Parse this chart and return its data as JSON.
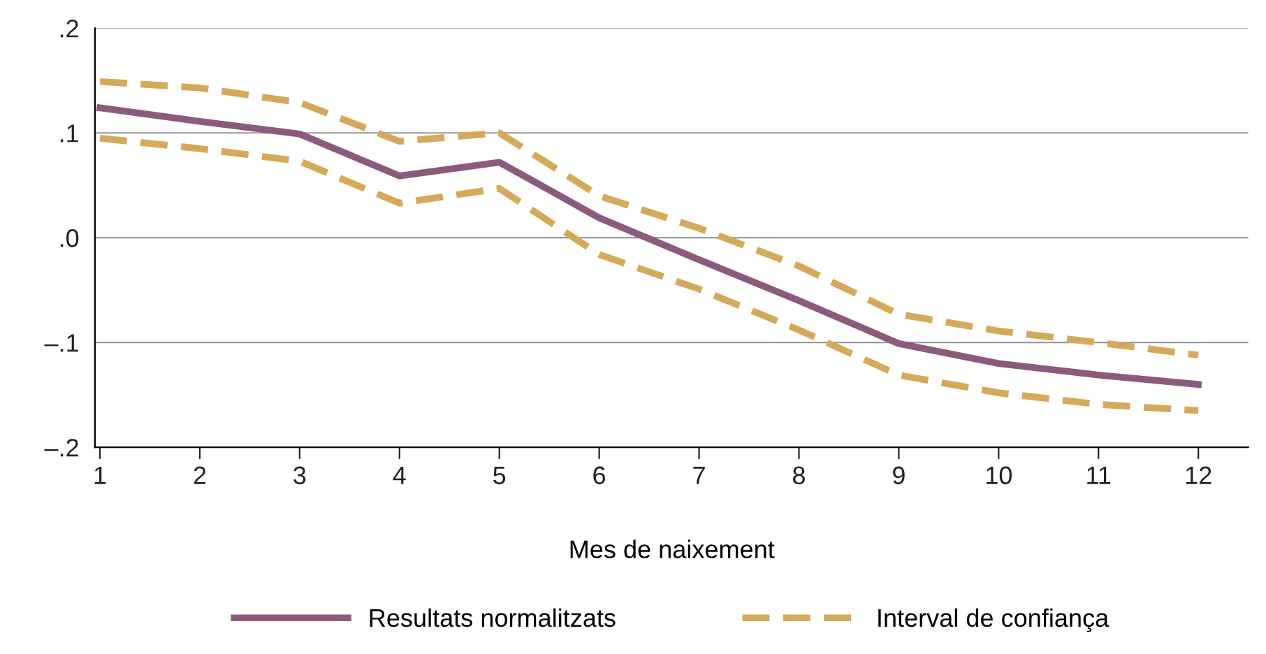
{
  "chart_data": {
    "type": "line",
    "xlabel": "Mes de naixement",
    "x": [
      1,
      2,
      3,
      4,
      5,
      6,
      7,
      8,
      9,
      10,
      11,
      12
    ],
    "series": [
      {
        "name": "Resultats normalitzats",
        "color": "#8c5a7c",
        "line_style": "solid",
        "values": [
          0.124,
          0.111,
          0.099,
          0.059,
          0.072,
          0.019,
          -0.021,
          -0.06,
          -0.101,
          -0.12,
          -0.131,
          -0.14
        ]
      },
      {
        "name": "Interval de confiança",
        "color": "#d4aa5a",
        "line_style": "dashed",
        "values": [
          0.149,
          0.143,
          0.129,
          0.092,
          0.1,
          0.04,
          0.009,
          -0.027,
          -0.073,
          -0.089,
          -0.1,
          -0.112
        ]
      },
      {
        "color": "#d4aa5a",
        "line_style": "dashed",
        "values": [
          0.095,
          0.085,
          0.073,
          0.033,
          0.047,
          -0.016,
          -0.049,
          -0.088,
          -0.131,
          -0.148,
          -0.159,
          -0.165
        ]
      }
    ],
    "xlim": [
      0.95,
      12.5
    ],
    "xticks": [
      1,
      2,
      3,
      4,
      5,
      6,
      7,
      8,
      9,
      10,
      11,
      12
    ],
    "ylim": [
      -0.2,
      0.2
    ],
    "yticks": [
      {
        "value": -0.2,
        "label": "–.2"
      },
      {
        "value": -0.1,
        "label": "–.1"
      },
      {
        "value": 0,
        "label": ".0"
      },
      {
        "value": 0.1,
        "label": ".1"
      },
      {
        "value": 0.2,
        "label": ".2"
      }
    ],
    "grid": "y",
    "legend": "bottom",
    "marker": "none"
  }
}
